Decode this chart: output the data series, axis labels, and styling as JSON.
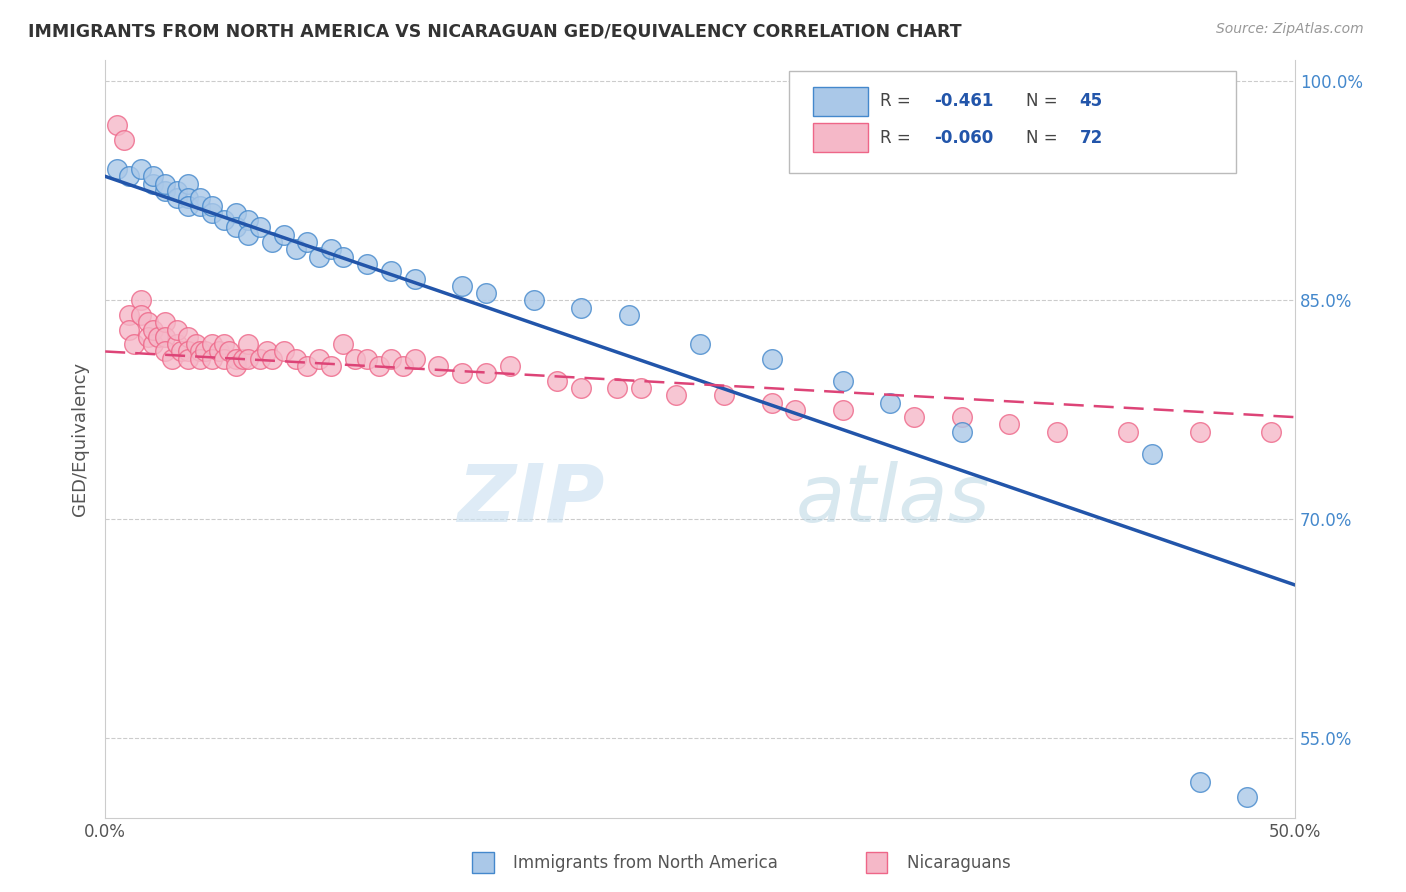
{
  "title": "IMMIGRANTS FROM NORTH AMERICA VS NICARAGUAN GED/EQUIVALENCY CORRELATION CHART",
  "source_text": "Source: ZipAtlas.com",
  "ylabel": "GED/Equivalency",
  "xlim": [
    0.0,
    0.5
  ],
  "ylim": [
    0.495,
    1.015
  ],
  "yticks": [
    0.55,
    0.7,
    0.85,
    1.0
  ],
  "ytick_labels": [
    "55.0%",
    "70.0%",
    "85.0%",
    "100.0%"
  ],
  "xticks": [
    0.0,
    0.1,
    0.2,
    0.3,
    0.4,
    0.5
  ],
  "xtick_labels": [
    "0.0%",
    "",
    "",
    "",
    "",
    "50.0%"
  ],
  "legend_R1": "-0.461",
  "legend_N1": "45",
  "legend_R2": "-0.060",
  "legend_N2": "72",
  "blue_fill": "#aac8e8",
  "pink_fill": "#f5b8c8",
  "blue_edge": "#4488cc",
  "pink_edge": "#ee6688",
  "blue_line": "#2255aa",
  "pink_line": "#dd4477",
  "watermark_zip": "ZIP",
  "watermark_atlas": "atlas",
  "blue_scatter_x": [
    0.005,
    0.01,
    0.015,
    0.02,
    0.02,
    0.025,
    0.025,
    0.03,
    0.03,
    0.035,
    0.035,
    0.035,
    0.04,
    0.04,
    0.045,
    0.045,
    0.05,
    0.055,
    0.055,
    0.06,
    0.06,
    0.065,
    0.07,
    0.075,
    0.08,
    0.085,
    0.09,
    0.095,
    0.1,
    0.11,
    0.12,
    0.13,
    0.15,
    0.16,
    0.18,
    0.2,
    0.22,
    0.25,
    0.28,
    0.31,
    0.33,
    0.36,
    0.44,
    0.46,
    0.48
  ],
  "blue_scatter_y": [
    0.94,
    0.935,
    0.94,
    0.93,
    0.935,
    0.925,
    0.93,
    0.92,
    0.925,
    0.93,
    0.92,
    0.915,
    0.915,
    0.92,
    0.91,
    0.915,
    0.905,
    0.91,
    0.9,
    0.905,
    0.895,
    0.9,
    0.89,
    0.895,
    0.885,
    0.89,
    0.88,
    0.885,
    0.88,
    0.875,
    0.87,
    0.865,
    0.86,
    0.855,
    0.85,
    0.845,
    0.84,
    0.82,
    0.81,
    0.795,
    0.78,
    0.76,
    0.745,
    0.52,
    0.51
  ],
  "pink_scatter_x": [
    0.005,
    0.008,
    0.01,
    0.01,
    0.012,
    0.015,
    0.015,
    0.018,
    0.018,
    0.02,
    0.02,
    0.022,
    0.025,
    0.025,
    0.025,
    0.028,
    0.03,
    0.03,
    0.032,
    0.035,
    0.035,
    0.035,
    0.038,
    0.04,
    0.04,
    0.042,
    0.045,
    0.045,
    0.048,
    0.05,
    0.05,
    0.052,
    0.055,
    0.055,
    0.058,
    0.06,
    0.06,
    0.065,
    0.068,
    0.07,
    0.075,
    0.08,
    0.085,
    0.09,
    0.095,
    0.1,
    0.105,
    0.11,
    0.115,
    0.12,
    0.125,
    0.13,
    0.14,
    0.15,
    0.16,
    0.17,
    0.19,
    0.2,
    0.215,
    0.225,
    0.24,
    0.26,
    0.28,
    0.29,
    0.31,
    0.34,
    0.36,
    0.38,
    0.4,
    0.43,
    0.46,
    0.49
  ],
  "pink_scatter_y": [
    0.97,
    0.96,
    0.84,
    0.83,
    0.82,
    0.85,
    0.84,
    0.835,
    0.825,
    0.82,
    0.83,
    0.825,
    0.835,
    0.825,
    0.815,
    0.81,
    0.82,
    0.83,
    0.815,
    0.825,
    0.815,
    0.81,
    0.82,
    0.815,
    0.81,
    0.815,
    0.82,
    0.81,
    0.815,
    0.82,
    0.81,
    0.815,
    0.81,
    0.805,
    0.81,
    0.82,
    0.81,
    0.81,
    0.815,
    0.81,
    0.815,
    0.81,
    0.805,
    0.81,
    0.805,
    0.82,
    0.81,
    0.81,
    0.805,
    0.81,
    0.805,
    0.81,
    0.805,
    0.8,
    0.8,
    0.805,
    0.795,
    0.79,
    0.79,
    0.79,
    0.785,
    0.785,
    0.78,
    0.775,
    0.775,
    0.77,
    0.77,
    0.765,
    0.76,
    0.76,
    0.76,
    0.76
  ]
}
